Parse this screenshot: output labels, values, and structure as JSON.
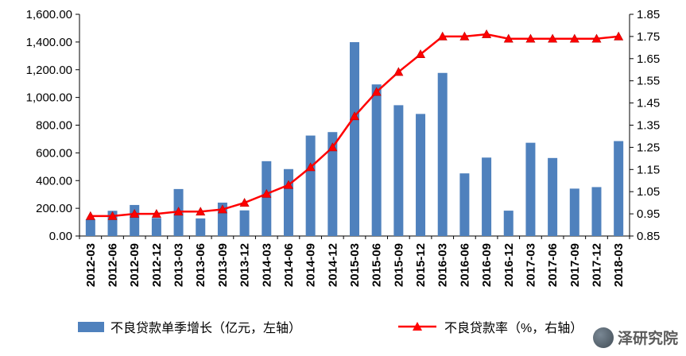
{
  "watermark": {
    "text": "泽研究院",
    "icon": "logo-globe-icon"
  },
  "chart_data": {
    "type": "combo-bar-line",
    "categories": [
      "2012-03",
      "2012-06",
      "2012-09",
      "2012-12",
      "2013-03",
      "2013-06",
      "2013-09",
      "2013-12",
      "2014-03",
      "2014-06",
      "2014-09",
      "2014-12",
      "2015-03",
      "2015-06",
      "2015-09",
      "2015-12",
      "2016-03",
      "2016-06",
      "2016-09",
      "2016-12",
      "2017-03",
      "2017-06",
      "2017-09",
      "2017-12",
      "2018-03"
    ],
    "series": [
      {
        "name": "不良贷款单季增长（亿元，左轴）",
        "type": "bar",
        "axis": "left",
        "color": "#4F81BD",
        "values": [
          120,
          182,
          224,
          130,
          339,
          127,
          241,
          185,
          540,
          483,
          725,
          750,
          1399,
          1094,
          944,
          881,
          1177,
          452,
          566,
          183,
          673,
          563,
          342,
          353,
          685
        ]
      },
      {
        "name": "不良贷款率（%，右轴）",
        "type": "line",
        "axis": "right",
        "color": "#FF0000",
        "marker": "triangle",
        "values": [
          0.94,
          0.94,
          0.95,
          0.95,
          0.96,
          0.96,
          0.97,
          1.0,
          1.04,
          1.08,
          1.16,
          1.25,
          1.39,
          1.5,
          1.59,
          1.67,
          1.75,
          1.75,
          1.76,
          1.74,
          1.74,
          1.74,
          1.74,
          1.74,
          1.75
        ]
      }
    ],
    "left_axis": {
      "min": 0,
      "max": 1600,
      "step": 200
    },
    "right_axis": {
      "min": 0.85,
      "max": 1.85,
      "step": 0.1
    },
    "grid": false,
    "legend_position": "bottom"
  }
}
